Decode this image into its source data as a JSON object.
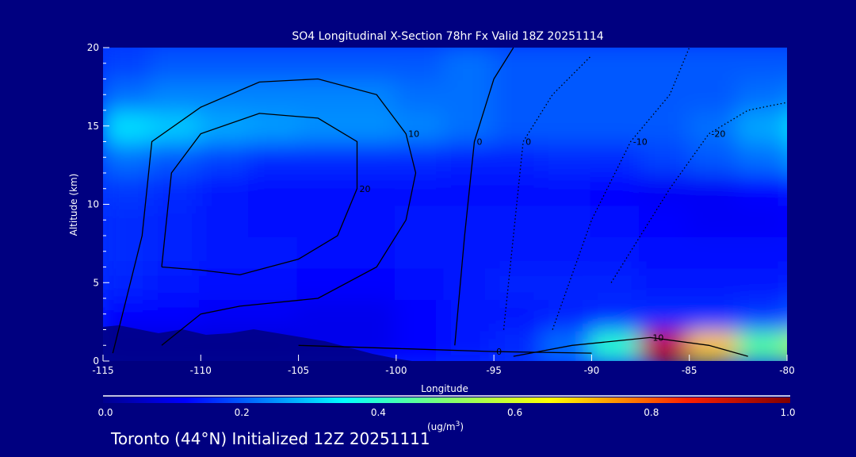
{
  "chart_data": {
    "type": "heatmap",
    "title": "SO4 Longitudinal X-Section 78hr  Fx Valid 18Z 20251114",
    "xlabel": "Longitude",
    "ylabel": "Altitude (km)",
    "xlim": [
      -115,
      -80
    ],
    "ylim": [
      0,
      20
    ],
    "x_ticks": [
      "-115",
      "-110",
      "-105",
      "-100",
      "-95",
      "-90",
      "-85",
      "-80"
    ],
    "y_ticks": [
      "0",
      "5",
      "10",
      "15",
      "20"
    ],
    "grid_lon_centers": [
      -113.75,
      -111.25,
      -108.75,
      -106.25,
      -103.75,
      -101.25,
      -98.75,
      -96.25,
      -93.75,
      -91.25,
      -88.75,
      -86.25,
      -83.75,
      -81.25,
      -78.75
    ],
    "grid_alt_centers": [
      1,
      3,
      5,
      7,
      9,
      11,
      13,
      15,
      17,
      19
    ],
    "values": [
      [
        0.08,
        0.08,
        0.08,
        0.08,
        0.1,
        0.1,
        0.12,
        0.14,
        0.16,
        0.22,
        0.4,
        0.92,
        0.7,
        0.45,
        0.55
      ],
      [
        0.12,
        0.12,
        0.11,
        0.11,
        0.1,
        0.1,
        0.12,
        0.14,
        0.14,
        0.15,
        0.16,
        0.16,
        0.16,
        0.17,
        0.2
      ],
      [
        0.15,
        0.14,
        0.13,
        0.13,
        0.12,
        0.12,
        0.13,
        0.14,
        0.15,
        0.15,
        0.15,
        0.14,
        0.14,
        0.14,
        0.15
      ],
      [
        0.16,
        0.15,
        0.14,
        0.14,
        0.13,
        0.13,
        0.14,
        0.14,
        0.14,
        0.14,
        0.14,
        0.13,
        0.13,
        0.13,
        0.13
      ],
      [
        0.16,
        0.15,
        0.14,
        0.13,
        0.13,
        0.13,
        0.14,
        0.14,
        0.14,
        0.14,
        0.13,
        0.12,
        0.11,
        0.11,
        0.12
      ],
      [
        0.17,
        0.16,
        0.14,
        0.13,
        0.13,
        0.13,
        0.13,
        0.13,
        0.13,
        0.13,
        0.12,
        0.11,
        0.11,
        0.12,
        0.14
      ],
      [
        0.22,
        0.2,
        0.18,
        0.16,
        0.16,
        0.16,
        0.16,
        0.15,
        0.15,
        0.16,
        0.16,
        0.18,
        0.2,
        0.22,
        0.26
      ],
      [
        0.32,
        0.3,
        0.27,
        0.26,
        0.25,
        0.25,
        0.24,
        0.22,
        0.2,
        0.2,
        0.2,
        0.2,
        0.22,
        0.27,
        0.32
      ],
      [
        0.22,
        0.24,
        0.24,
        0.24,
        0.24,
        0.24,
        0.22,
        0.22,
        0.2,
        0.2,
        0.2,
        0.2,
        0.2,
        0.22,
        0.24
      ],
      [
        0.18,
        0.2,
        0.2,
        0.2,
        0.2,
        0.2,
        0.2,
        0.22,
        0.2,
        0.2,
        0.2,
        0.2,
        0.2,
        0.2,
        0.2
      ]
    ],
    "contours": [
      {
        "level": "10",
        "style": "solid",
        "points": [
          [
            -114.5,
            0.5
          ],
          [
            -113,
            8
          ],
          [
            -112.5,
            14
          ],
          [
            -110,
            16.2
          ],
          [
            -107,
            17.8
          ],
          [
            -104,
            18
          ],
          [
            -101,
            17
          ],
          [
            -99.5,
            14.5
          ],
          [
            -99,
            12
          ],
          [
            -99.5,
            9
          ],
          [
            -101,
            6
          ],
          [
            -104,
            4
          ],
          [
            -108,
            3.5
          ],
          [
            -110,
            3
          ],
          [
            -112,
            1
          ]
        ]
      },
      {
        "level": "20",
        "style": "solid",
        "points": [
          [
            -112,
            6
          ],
          [
            -111.5,
            12
          ],
          [
            -110,
            14.5
          ],
          [
            -107,
            15.8
          ],
          [
            -104,
            15.5
          ],
          [
            -102,
            14
          ],
          [
            -102,
            11
          ],
          [
            -103,
            8
          ],
          [
            -105,
            6.5
          ],
          [
            -108,
            5.5
          ],
          [
            -110,
            5.8
          ],
          [
            -112,
            6
          ]
        ]
      },
      {
        "level": "0",
        "style": "solid",
        "points": [
          [
            -105,
            1
          ],
          [
            -100,
            0.8
          ],
          [
            -95,
            0.6
          ],
          [
            -90,
            0.5
          ]
        ]
      },
      {
        "level": "0",
        "style": "solid",
        "points": [
          [
            -97,
            1
          ],
          [
            -96.5,
            8
          ],
          [
            -96,
            14
          ],
          [
            -95,
            18
          ],
          [
            -94,
            20
          ]
        ]
      },
      {
        "level": "0",
        "style": "dotted",
        "points": [
          [
            -94.5,
            2
          ],
          [
            -94,
            8
          ],
          [
            -93.5,
            14
          ],
          [
            -92,
            17
          ],
          [
            -90,
            19.5
          ]
        ]
      },
      {
        "level": "-10",
        "style": "dotted",
        "points": [
          [
            -92,
            2
          ],
          [
            -90,
            9
          ],
          [
            -88,
            14
          ],
          [
            -86,
            17
          ],
          [
            -85,
            20
          ]
        ]
      },
      {
        "level": "-20",
        "style": "dotted",
        "points": [
          [
            -89,
            5
          ],
          [
            -86,
            11
          ],
          [
            -84,
            14.5
          ],
          [
            -82,
            16
          ],
          [
            -80,
            16.5
          ]
        ]
      },
      {
        "level": "10",
        "style": "solid",
        "points": [
          [
            -94,
            0.3
          ],
          [
            -91,
            1
          ],
          [
            -87,
            1.5
          ],
          [
            -84,
            1
          ],
          [
            -82,
            0.3
          ]
        ]
      }
    ],
    "colorbar": {
      "ticks": [
        "0.0",
        "0.2",
        "0.4",
        "0.6",
        "0.8",
        "1.0"
      ],
      "range": [
        0,
        1
      ],
      "unit": "(ug/m",
      "unit_sup": "3",
      "unit_close": ")"
    }
  },
  "footer": "Toronto (44°N) Initialized 12Z 20251111",
  "colors": {
    "background": "#000080"
  }
}
